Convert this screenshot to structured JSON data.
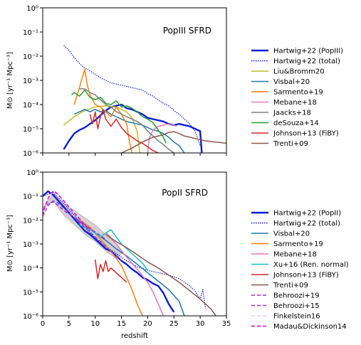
{
  "chart_data": [
    {
      "type": "line",
      "title": "PopIII SFRD",
      "ylabel": "M⊙ [yr⁻¹ Mpc⁻³]",
      "xlabel": "",
      "xlim": [
        0,
        35
      ],
      "ylim_log10": [
        -6,
        0
      ],
      "yscale": "log",
      "x_ticks": [
        0,
        5,
        10,
        15,
        20,
        25,
        30,
        35
      ],
      "x_tick_labels": [
        "",
        "",
        "",
        "",
        "",
        "",
        "",
        ""
      ],
      "y_ticks_log10": [
        -6,
        -5,
        -4,
        -3,
        -2,
        -1,
        0
      ],
      "y_tick_labels": [
        "10⁻⁶",
        "10⁻⁵",
        "10⁻⁴",
        "10⁻³",
        "10⁻²",
        "10⁻¹",
        "10⁰"
      ],
      "grid": false,
      "legend_position": "outside-right",
      "series": [
        {
          "name": "Hartwig+22 (PopIII)",
          "color": "#0a1fd6",
          "width": 2.4,
          "dash": "",
          "x": [
            4,
            5,
            6,
            7,
            8,
            9,
            10,
            11,
            12,
            13,
            14,
            15,
            16,
            17,
            18,
            19,
            20,
            21,
            22,
            23,
            24,
            25,
            26,
            27,
            28,
            29,
            30,
            30.3
          ],
          "y_log10": [
            -5.85,
            -5.5,
            -5.2,
            -5.05,
            -4.95,
            -4.8,
            -4.65,
            -4.45,
            -4.25,
            -4.1,
            -4.05,
            -4.0,
            -4.15,
            -4.2,
            -4.3,
            -4.4,
            -4.55,
            -4.6,
            -4.65,
            -4.7,
            -4.8,
            -4.85,
            -4.8,
            -4.85,
            -4.9,
            -5.0,
            -5.1,
            -6.0
          ]
        },
        {
          "name": "Hartwig+22 (total)",
          "color": "#0a1fd6",
          "width": 1.2,
          "dash": "1.5,1.5",
          "x": [
            4,
            5,
            6,
            7,
            8,
            9,
            10,
            11,
            12,
            13,
            14,
            15,
            16,
            17,
            18,
            19,
            20,
            21,
            22,
            23,
            24,
            25,
            26,
            27,
            28,
            29,
            30
          ],
          "y_log10": [
            -1.55,
            -1.75,
            -2.05,
            -2.3,
            -2.5,
            -2.6,
            -2.75,
            -2.9,
            -3.0,
            -3.1,
            -3.15,
            -3.2,
            -3.25,
            -3.3,
            -3.35,
            -3.4,
            -3.55,
            -3.65,
            -3.8,
            -3.95,
            -4.05,
            -4.25,
            -4.4,
            -4.6,
            -4.8,
            -5.1,
            -5.7
          ]
        },
        {
          "name": "Liu&Bromm20",
          "color": "#bcbd22",
          "width": 1.5,
          "dash": "",
          "x": [
            4,
            6,
            8,
            10,
            12,
            14,
            16,
            17,
            18,
            18.5
          ],
          "y_log10": [
            -4.85,
            -4.5,
            -4.25,
            -4.1,
            -4.05,
            -4.1,
            -4.3,
            -4.55,
            -5.1,
            -6.0
          ]
        },
        {
          "name": "Visbal+20",
          "color": "#1f77b4",
          "width": 1.5,
          "dash": "",
          "x": [
            6,
            7,
            8,
            9,
            10,
            11,
            12,
            13,
            14,
            15,
            16,
            17,
            18,
            19,
            20,
            21,
            22,
            23,
            24,
            25,
            26,
            27
          ],
          "y_log10": [
            -4.4,
            -4.3,
            -4.2,
            -4.3,
            -4.2,
            -4.3,
            -4.25,
            -4.4,
            -4.5,
            -4.6,
            -4.7,
            -4.75,
            -4.8,
            -4.85,
            -4.95,
            -5.05,
            -5.1,
            -5.2,
            -5.35,
            -5.55,
            -5.7,
            -6.0
          ]
        },
        {
          "name": "Sarmento+19",
          "color": "#ff7f0e",
          "width": 1.5,
          "dash": "",
          "x": [
            6,
            7,
            7.5,
            8,
            8.5,
            9,
            10,
            11,
            12,
            13,
            14,
            15,
            16,
            16.5,
            17
          ],
          "y_log10": [
            -4.0,
            -3.3,
            -2.9,
            -2.55,
            -3.2,
            -3.6,
            -4.0,
            -4.1,
            -4.3,
            -4.5,
            -4.1,
            -4.4,
            -4.8,
            -5.5,
            -6.0
          ]
        },
        {
          "name": "Mebane+18",
          "color": "#e377c2",
          "width": 1.5,
          "dash": "",
          "x": [
            20,
            20.3,
            21,
            22,
            23,
            24,
            25,
            25.5
          ],
          "y_log10": [
            -6.0,
            -5.4,
            -5.05,
            -4.9,
            -4.85,
            -4.8,
            -4.85,
            -4.9
          ]
        },
        {
          "name": "Jaacks+18",
          "color": "#7f7f7f",
          "width": 1.5,
          "dash": "",
          "x": [
            7,
            8,
            9,
            10,
            11,
            12,
            13,
            14,
            15,
            16,
            17,
            18,
            19,
            20,
            21,
            22,
            23,
            24,
            25
          ],
          "y_log10": [
            -3.35,
            -3.35,
            -3.5,
            -3.6,
            -3.8,
            -4.0,
            -4.1,
            -4.3,
            -4.4,
            -4.5,
            -4.6,
            -4.7,
            -4.85,
            -5.1,
            -5.3,
            -5.5,
            -5.65,
            -5.85,
            -6.0
          ]
        },
        {
          "name": "deSouza+14",
          "color": "#2ca02c",
          "width": 1.5,
          "dash": "",
          "x": [
            5.5,
            6,
            7,
            8,
            9,
            10,
            11,
            12,
            13,
            14,
            15,
            16,
            17,
            18,
            19,
            20,
            21,
            22,
            23,
            23.5
          ],
          "y_log10": [
            -3.6,
            -3.5,
            -3.65,
            -3.4,
            -3.7,
            -3.8,
            -3.7,
            -3.95,
            -4.0,
            -3.85,
            -4.1,
            -4.05,
            -4.15,
            -4.3,
            -4.5,
            -4.6,
            -4.75,
            -5.05,
            -5.35,
            -5.6
          ]
        },
        {
          "name": "Johnson+13 (FiBY)",
          "color": "#d62728",
          "width": 1.5,
          "dash": "",
          "x": [
            9,
            9.5,
            10,
            10.5,
            11,
            11.5,
            12,
            13,
            14,
            15,
            16,
            17,
            18,
            19,
            20,
            21,
            22
          ],
          "y_log10": [
            -4.4,
            -4.8,
            -4.3,
            -5.0,
            -4.5,
            -4.2,
            -4.6,
            -4.9,
            -4.6,
            -4.95,
            -5.2,
            -5.35,
            -5.5,
            -5.6,
            -5.75,
            -5.9,
            -6.0
          ]
        },
        {
          "name": "Trenti+09",
          "color": "#8c564b",
          "width": 1.5,
          "dash": "",
          "x": [
            15,
            17,
            19,
            21,
            23,
            24,
            25,
            26,
            27,
            28,
            29,
            30,
            31,
            33,
            35
          ],
          "y_log10": [
            -6.0,
            -5.8,
            -5.55,
            -5.35,
            -5.25,
            -5.15,
            -5.12,
            -5.2,
            -5.3,
            -5.35,
            -5.4,
            -5.45,
            -5.5,
            -5.55,
            -5.6
          ]
        }
      ]
    },
    {
      "type": "line",
      "title": "PopII SFRD",
      "ylabel": "M⊙ [yr⁻¹ Mpc⁻³]",
      "xlabel": "redshift",
      "xlim": [
        0,
        35
      ],
      "ylim_log10": [
        -6,
        0
      ],
      "yscale": "log",
      "x_ticks": [
        0,
        5,
        10,
        15,
        20,
        25,
        30,
        35
      ],
      "x_tick_labels": [
        "0",
        "5",
        "10",
        "15",
        "20",
        "25",
        "30",
        "35"
      ],
      "y_ticks_log10": [
        -6,
        -5,
        -4,
        -3,
        -2,
        -1,
        0
      ],
      "y_tick_labels": [
        "10⁻⁶",
        "10⁻⁵",
        "10⁻⁴",
        "10⁻³",
        "10⁻²",
        "10⁻¹",
        "10⁰"
      ],
      "grid": false,
      "legend_position": "outside-right",
      "shaded_band": {
        "color": "#bfbfbf",
        "x": [
          0,
          2,
          4,
          6,
          8,
          10,
          12,
          14,
          15
        ],
        "upper_log10": [
          -1.5,
          -0.9,
          -1.3,
          -1.6,
          -1.9,
          -2.2,
          -2.6,
          -3.0,
          -3.3
        ],
        "lower_log10": [
          -1.5,
          -1.2,
          -1.8,
          -2.2,
          -2.6,
          -2.9,
          -3.3,
          -3.6,
          -3.4
        ]
      },
      "series": [
        {
          "name": "Hartwig+22 (PopII)",
          "color": "#0a1fd6",
          "width": 2.4,
          "dash": "",
          "x": [
            0,
            1,
            2,
            3,
            4,
            5,
            6,
            7,
            8,
            9,
            10,
            11,
            12,
            13,
            14,
            15,
            16,
            17,
            18,
            19,
            20,
            21,
            22,
            23,
            24,
            25
          ],
          "y_log10": [
            -1.0,
            -0.8,
            -0.95,
            -1.2,
            -1.45,
            -1.7,
            -1.95,
            -2.2,
            -2.45,
            -2.6,
            -2.8,
            -3.0,
            -3.2,
            -3.3,
            -3.5,
            -3.7,
            -3.85,
            -4.05,
            -4.2,
            -4.4,
            -4.5,
            -4.65,
            -4.75,
            -5.05,
            -5.5,
            -5.85
          ]
        },
        {
          "name": "Hartwig+22 (total)",
          "color": "#0a1fd6",
          "width": 1.2,
          "dash": "1.5,1.5",
          "x": [
            0,
            2,
            4,
            6,
            8,
            10,
            12,
            14,
            16,
            18,
            20,
            22,
            24,
            26,
            28,
            29,
            30,
            30.5,
            31
          ],
          "y_log10": [
            -1.0,
            -0.85,
            -1.3,
            -1.8,
            -2.3,
            -2.75,
            -3.1,
            -3.4,
            -3.7,
            -3.95,
            -4.1,
            -4.2,
            -4.3,
            -4.45,
            -4.75,
            -4.95,
            -5.3,
            -4.9,
            -5.7
          ]
        },
        {
          "name": "Visbal+20",
          "color": "#1f77b4",
          "width": 1.5,
          "dash": "",
          "x": [
            6,
            8,
            10,
            12,
            14,
            16,
            18,
            20,
            22,
            24,
            26,
            27
          ],
          "y_log10": [
            -1.9,
            -2.2,
            -2.55,
            -2.85,
            -3.2,
            -3.5,
            -3.85,
            -4.2,
            -4.55,
            -4.9,
            -5.4,
            -6.0
          ]
        },
        {
          "name": "Sarmento+19",
          "color": "#ff7f0e",
          "width": 1.5,
          "dash": "",
          "x": [
            7,
            9,
            11,
            13,
            15,
            16,
            17,
            18,
            19
          ],
          "y_log10": [
            -2.0,
            -2.3,
            -2.8,
            -3.3,
            -3.9,
            -4.4,
            -4.9,
            -5.5,
            -6.0
          ]
        },
        {
          "name": "Mebane+18",
          "color": "#e377c2",
          "width": 1.5,
          "dash": "",
          "x": [
            12,
            14,
            16,
            18,
            20,
            21,
            22,
            23
          ],
          "y_log10": [
            -2.5,
            -3.0,
            -3.55,
            -4.05,
            -4.6,
            -5.0,
            -5.5,
            -6.0
          ]
        },
        {
          "name": "Xu+16 (Ren. normal)",
          "color": "#17becf",
          "width": 1.5,
          "dash": "",
          "x": [
            7,
            9,
            11,
            13,
            15,
            17,
            19,
            20
          ],
          "y_log10": [
            -2.2,
            -2.4,
            -2.7,
            -2.4,
            -3.0,
            -3.4,
            -3.8,
            -4.1
          ]
        },
        {
          "name": "Johnson+13 (FiBY)",
          "color": "#d62728",
          "width": 1.5,
          "dash": "",
          "x": [
            10,
            10.5,
            11,
            11.5,
            12,
            12.5,
            13,
            14,
            15,
            16
          ],
          "y_log10": [
            -3.65,
            -4.45,
            -3.85,
            -4.15,
            -3.7,
            -4.15,
            -4.0,
            -4.2,
            -4.4,
            -4.6
          ]
        },
        {
          "name": "Trenti+09",
          "color": "#8c564b",
          "width": 1.5,
          "dash": "",
          "x": [
            12,
            14,
            16,
            18,
            20,
            22,
            24,
            26,
            28,
            30,
            32,
            33
          ],
          "y_log10": [
            -2.6,
            -2.9,
            -3.15,
            -3.45,
            -3.75,
            -4.0,
            -4.3,
            -4.6,
            -4.95,
            -5.3,
            -5.7,
            -6.0
          ]
        },
        {
          "name": "Behroozi+19",
          "color": "#9b30d9",
          "width": 1.5,
          "dash": "5,3",
          "x": [
            0,
            1,
            2,
            3,
            4,
            5,
            6,
            7,
            8,
            9,
            10,
            11,
            12
          ],
          "y_log10": [
            -1.6,
            -1.3,
            -1.25,
            -1.4,
            -1.6,
            -1.75,
            -1.9,
            -2.05,
            -2.2,
            -2.35,
            -2.5,
            -2.65,
            -2.8
          ]
        },
        {
          "name": "Behroozi+15",
          "color": "#9b30d9",
          "width": 1.5,
          "dash": "5,3",
          "x": [
            0,
            1,
            2,
            3,
            4,
            5,
            6,
            7,
            8,
            9,
            10,
            11,
            12,
            13,
            14,
            15
          ],
          "y_log10": [
            -1.85,
            -1.4,
            -1.2,
            -1.3,
            -1.5,
            -1.7,
            -1.9,
            -2.1,
            -2.3,
            -2.5,
            -2.7,
            -2.9,
            -3.1,
            -3.3,
            -3.5,
            -3.7
          ]
        },
        {
          "name": "Finkelstein16",
          "color": "#f7c6e3",
          "width": 1.5,
          "dash": "5,3",
          "x": [
            0,
            1,
            2,
            3,
            4,
            6,
            8,
            10,
            12,
            14
          ],
          "y_log10": [
            -1.9,
            -1.15,
            -0.8,
            -0.95,
            -1.25,
            -1.65,
            -2.0,
            -2.4,
            -2.75,
            -3.1
          ]
        },
        {
          "name": "Madau&Dickinson14",
          "color": "#e31bd0",
          "width": 1.8,
          "dash": "5,3",
          "x": [
            0,
            0.5,
            1,
            1.5,
            2,
            2.5,
            3,
            4,
            5,
            6,
            7,
            8,
            9
          ],
          "y_log10": [
            -1.8,
            -1.4,
            -1.1,
            -0.9,
            -0.8,
            -0.85,
            -0.95,
            -1.2,
            -1.45,
            -1.7,
            -1.95,
            -2.2,
            -2.45
          ]
        }
      ]
    }
  ]
}
